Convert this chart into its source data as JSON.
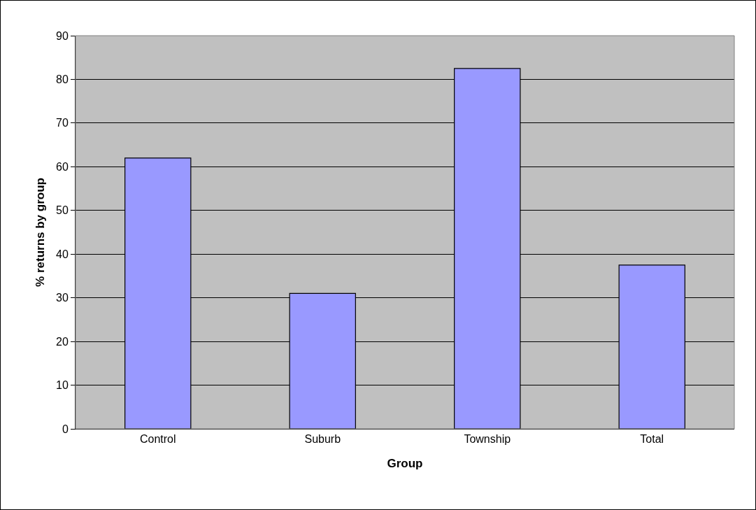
{
  "chart_data": {
    "type": "bar",
    "xlabel": "Group",
    "ylabel": "% returns by group",
    "categories": [
      "Control",
      "Suburb",
      "Township",
      "Total"
    ],
    "values": [
      62,
      31,
      82.5,
      37.5
    ],
    "color": "#9999ff",
    "ylim": [
      0,
      90
    ],
    "yticks": [
      0,
      10,
      20,
      30,
      40,
      50,
      60,
      70,
      80,
      90
    ],
    "grid": "y",
    "legend": false
  }
}
